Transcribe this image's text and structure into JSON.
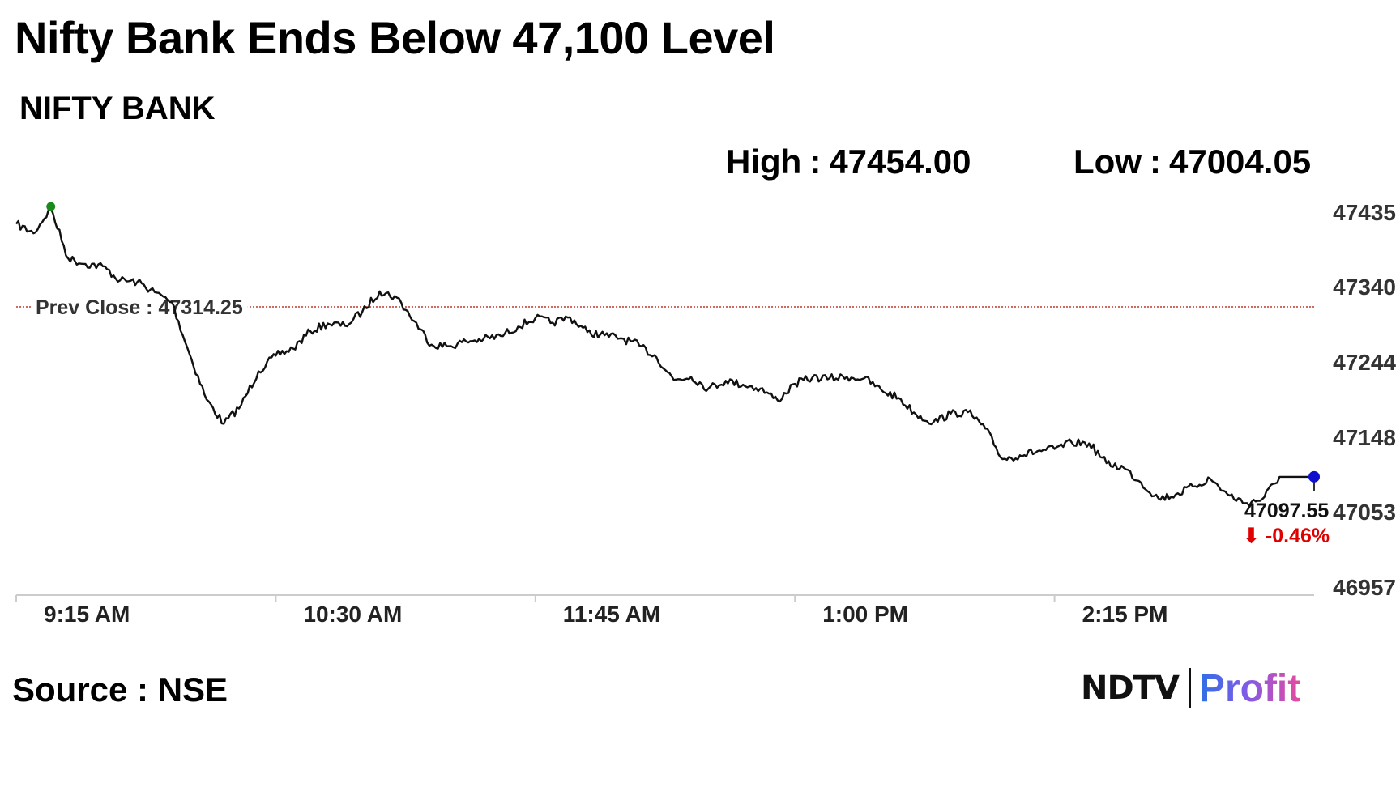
{
  "headline": "Nifty Bank Ends Below 47,100 Level",
  "index_name": "NIFTY BANK",
  "stats": {
    "high_label": "High",
    "high_value": "47454.00",
    "low_label": "Low",
    "low_value": "47004.05",
    "separator": ":"
  },
  "footer": {
    "source": "Source : NSE",
    "logo_ndtv": "NDTV",
    "logo_profit": "Profit"
  },
  "chart_data": {
    "type": "line",
    "series": [
      {
        "name": "",
        "x": [
          "9:15",
          "9:20",
          "9:25",
          "9:30",
          "9:35",
          "9:40",
          "9:45",
          "9:50",
          "9:55",
          "10:00",
          "10:05",
          "10:10",
          "10:15",
          "10:20",
          "10:25",
          "10:30",
          "10:35",
          "10:40",
          "10:45",
          "10:50",
          "10:55",
          "11:00",
          "11:05",
          "11:10",
          "11:15",
          "11:20",
          "11:25",
          "11:30",
          "11:35",
          "11:40",
          "11:45",
          "11:50",
          "11:55",
          "12:00",
          "12:05",
          "12:10",
          "12:15",
          "12:20",
          "12:25",
          "12:30",
          "12:35",
          "12:40",
          "12:45",
          "12:50",
          "12:55",
          "13:00",
          "13:05",
          "13:10",
          "13:15",
          "13:20",
          "13:25",
          "13:30",
          "13:35",
          "13:40",
          "13:45",
          "13:50",
          "13:55",
          "14:00",
          "14:05",
          "14:10",
          "14:15",
          "14:20",
          "14:25",
          "14:30",
          "14:35",
          "14:40",
          "14:45",
          "14:50",
          "14:55",
          "15:00",
          "15:05",
          "15:10",
          "15:15",
          "15:20",
          "15:25",
          "15:30"
        ],
        "y": [
          47420,
          47408,
          47440,
          47376,
          47369,
          47366,
          47348,
          47346,
          47333,
          47320,
          47255,
          47196,
          47165,
          47189,
          47232,
          47252,
          47261,
          47283,
          47293,
          47290,
          47308,
          47334,
          47326,
          47296,
          47266,
          47264,
          47270,
          47273,
          47277,
          47289,
          47300,
          47294,
          47301,
          47282,
          47278,
          47274,
          47265,
          47250,
          47221,
          47225,
          47210,
          47220,
          47215,
          47210,
          47195,
          47216,
          47224,
          47223,
          47225,
          47223,
          47208,
          47198,
          47177,
          47167,
          47178,
          47180,
          47159,
          47120,
          47125,
          47130,
          47133,
          47141,
          47140,
          47115,
          47109,
          47090,
          47070,
          47075,
          47085,
          47095,
          47075,
          47064,
          47069,
          47097.55,
          47097.55,
          47097.55
        ]
      }
    ],
    "prev_close": {
      "label": "Prev Close",
      "value": "47314.25"
    },
    "last": {
      "value": "47097.55",
      "change": "-0.46%",
      "arrow": "⬇"
    },
    "x_ticks": [
      "9:15 AM",
      "10:30 AM",
      "11:45 AM",
      "1:00 PM",
      "2:15 PM"
    ],
    "y_ticks": [
      "47435",
      "47340",
      "47244",
      "47148",
      "47053",
      "46957"
    ],
    "ylim": [
      46957,
      47435
    ],
    "grid": false,
    "colors": {
      "line": "#111111",
      "prev_close": "#c0392b",
      "high_marker": "#1a8a1a",
      "last_marker": "#1010cc",
      "change": "#e00000",
      "axis": "#cccccc"
    }
  }
}
